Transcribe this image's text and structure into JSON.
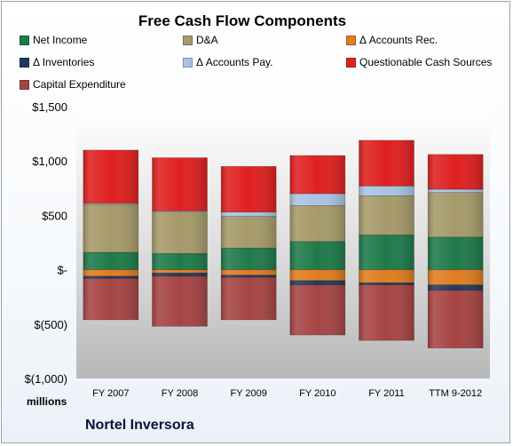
{
  "chart_data": {
    "type": "bar",
    "stacked": true,
    "title": "Free Cash Flow Components",
    "units_label": "millions",
    "subject": "Nortel Inversora",
    "categories": [
      "FY 2007",
      "FY 2008",
      "FY 2009",
      "FY 2010",
      "FY 2011",
      "TTM 9-2012"
    ],
    "ylim": [
      -1000,
      1500
    ],
    "yticks": [
      {
        "value": 1500,
        "label": "$1,500"
      },
      {
        "value": 1000,
        "label": "$1,000"
      },
      {
        "value": 500,
        "label": "$500"
      },
      {
        "value": 0,
        "label": "$-"
      },
      {
        "value": -500,
        "label": "$(500)"
      },
      {
        "value": -1000,
        "label": "$(1,000)"
      }
    ],
    "grid": false,
    "legend_position": "top",
    "series": [
      {
        "name": "Net Income",
        "color": "#1f7a4b",
        "values": [
          160,
          150,
          200,
          260,
          320,
          300
        ]
      },
      {
        "name": "D&A",
        "color": "#a69a6a",
        "values": [
          440,
          380,
          290,
          330,
          360,
          410
        ]
      },
      {
        "name": "Δ Accounts Rec.",
        "color": "#e07d1f",
        "values": [
          -60,
          -30,
          -50,
          -100,
          -120,
          -140
        ]
      },
      {
        "name": "Δ Inventories",
        "color": "#1f3a5f",
        "values": [
          -20,
          -30,
          -20,
          -40,
          -20,
          -50
        ]
      },
      {
        "name": "Δ Accounts Pay.",
        "color": "#a9c3e0",
        "values": [
          10,
          10,
          40,
          110,
          90,
          30
        ]
      },
      {
        "name": "Questionable Cash Sources",
        "color": "#e02020",
        "values": [
          490,
          490,
          420,
          350,
          420,
          320
        ]
      },
      {
        "name": "Capital Expenditure",
        "color": "#a64444",
        "values": [
          -380,
          -460,
          -390,
          -460,
          -510,
          -530
        ]
      }
    ]
  }
}
